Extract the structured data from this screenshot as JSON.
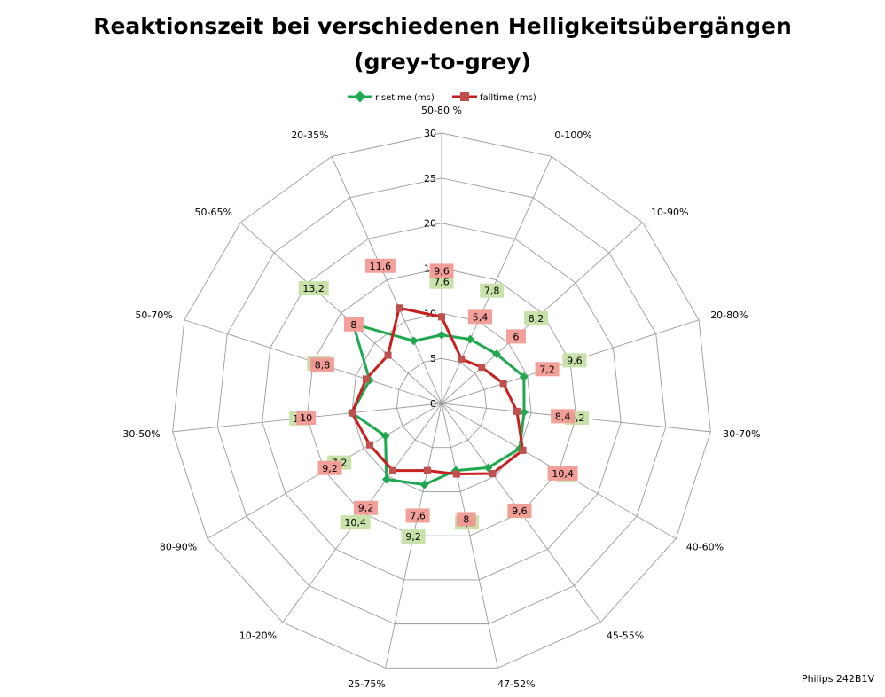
{
  "chart_data": {
    "type": "radar",
    "title_line1": "Reaktionszeit bei verschiedenen Helligkeitsübergängen",
    "title_line2": "(grey-to-grey)",
    "categories": [
      "50-80 %",
      "0-100%",
      "10-90%",
      "20-80%",
      "30-70%",
      "40-60%",
      "45-55%",
      "47-52%",
      "25-75%",
      "10-20%",
      "80-90%",
      "30-50%",
      "50-70%",
      "50-65%",
      "20-35%"
    ],
    "rlim": [
      0,
      30
    ],
    "ticks": [
      0,
      5,
      10,
      15,
      20,
      25,
      30
    ],
    "series": [
      {
        "name": "risetime (ms)",
        "color": "#1fa84f",
        "label_bg": "#c6e0a4",
        "marker": "diamond",
        "values": [
          7.6,
          7.8,
          8.2,
          9.6,
          9.2,
          10,
          8.8,
          7.6,
          9.2,
          10.4,
          7.2,
          10,
          8.4,
          13.2,
          7.6
        ]
      },
      {
        "name": "falltime (ms)",
        "color": "#c8201f",
        "label_bg": "#f29a95",
        "marker": "square",
        "values": [
          9.6,
          5.4,
          6,
          7.2,
          8.4,
          10.4,
          9.6,
          8,
          7.6,
          9.2,
          9.2,
          10,
          8.8,
          8,
          11.6
        ],
        "value_labels": [
          "9,6",
          "5,4",
          "6",
          "7,2",
          "8,4",
          "10,4",
          "9,6",
          "8",
          "7,6",
          "9,2",
          "9,2",
          "10",
          "8,8",
          "8",
          "11,6"
        ]
      }
    ],
    "risetime_labels": [
      "7,6",
      "7,8",
      "8,2",
      "9,6",
      "9,2",
      "10",
      "8,8",
      "7,6",
      "9,2",
      "10,4",
      "7,2",
      "10",
      "8,4",
      "13,2",
      ""
    ],
    "legend_position": "top",
    "grid": true
  },
  "footer": "Philips 242B1V"
}
